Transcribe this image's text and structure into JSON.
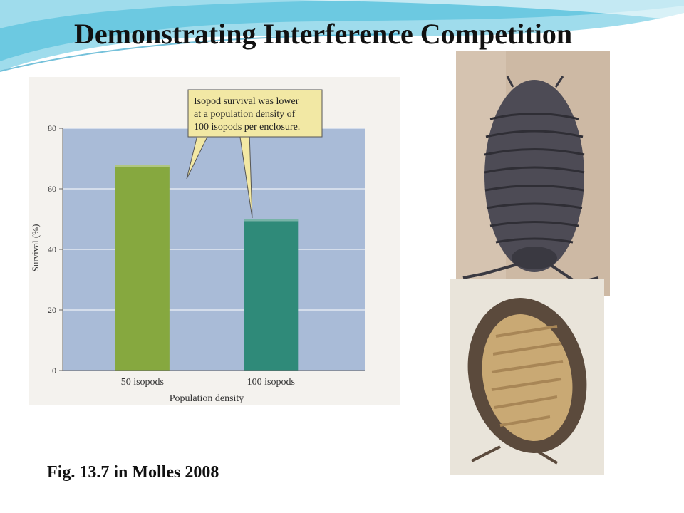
{
  "slide": {
    "title": "Demonstrating Interference Competition",
    "caption": "Fig. 13.7 in Molles 2008"
  },
  "chart_data": {
    "type": "bar",
    "categories": [
      "50 isopods",
      "100 isopods"
    ],
    "values": [
      68,
      50
    ],
    "xlabel": "Population density",
    "ylabel": "Survival (%)",
    "ylim": [
      0,
      80
    ],
    "yticks": [
      0,
      20,
      40,
      60,
      80
    ],
    "grid": true,
    "bar_colors": [
      "#86a83f",
      "#2f8a79"
    ],
    "plot_background": "#a9bbd7",
    "annotation": {
      "lines": [
        "Isopod survival was lower",
        "at a population density of",
        "100 isopods per enclosure."
      ],
      "background": "#f2e8a4"
    }
  },
  "photos": [
    {
      "icon": "isopod-dorsal-photo"
    },
    {
      "icon": "isopod-ventral-photo"
    }
  ]
}
